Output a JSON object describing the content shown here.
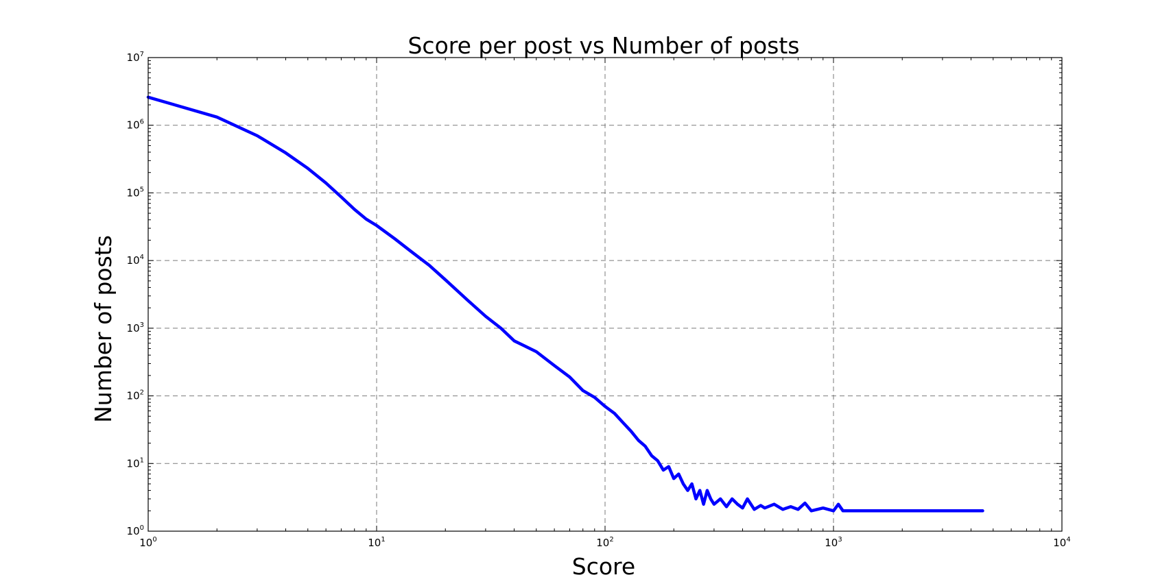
{
  "chart_data": {
    "type": "line",
    "title": "Score per post vs Number of posts",
    "xlabel": "Score",
    "ylabel": "Number of posts",
    "xscale": "log",
    "yscale": "log",
    "xlim": [
      1,
      10000
    ],
    "ylim": [
      1,
      10000000
    ],
    "x_ticks": [
      {
        "value": 1,
        "base": "10",
        "exp": "0"
      },
      {
        "value": 10,
        "base": "10",
        "exp": "1"
      },
      {
        "value": 100,
        "base": "10",
        "exp": "2"
      },
      {
        "value": 1000,
        "base": "10",
        "exp": "3"
      },
      {
        "value": 10000,
        "base": "10",
        "exp": "4"
      }
    ],
    "y_ticks": [
      {
        "value": 1,
        "base": "10",
        "exp": "0"
      },
      {
        "value": 10,
        "base": "10",
        "exp": "1"
      },
      {
        "value": 100,
        "base": "10",
        "exp": "2"
      },
      {
        "value": 1000,
        "base": "10",
        "exp": "3"
      },
      {
        "value": 10000,
        "base": "10",
        "exp": "4"
      },
      {
        "value": 100000,
        "base": "10",
        "exp": "5"
      },
      {
        "value": 1000000,
        "base": "10",
        "exp": "6"
      },
      {
        "value": 10000000,
        "base": "10",
        "exp": "7"
      }
    ],
    "grid": true,
    "legend": "none",
    "series": [
      {
        "color": "#0000ff",
        "x": [
          1,
          2,
          3,
          4,
          5,
          6,
          7,
          8,
          9,
          10,
          12,
          14,
          17,
          20,
          25,
          30,
          35,
          40,
          50,
          60,
          70,
          80,
          90,
          100,
          110,
          120,
          130,
          140,
          150,
          160,
          170,
          180,
          190,
          200,
          210,
          220,
          230,
          240,
          250,
          260,
          270,
          280,
          290,
          300,
          320,
          340,
          360,
          380,
          400,
          420,
          450,
          480,
          500,
          550,
          600,
          650,
          700,
          750,
          800,
          900,
          1000,
          1050,
          1100,
          1200,
          1500,
          2000,
          3000,
          4500
        ],
        "y": [
          2600000,
          1320000,
          700000,
          390000,
          230000,
          140000,
          87000,
          57000,
          41000,
          33000,
          21000,
          14000,
          8500,
          5200,
          2600,
          1500,
          1000,
          650,
          450,
          280,
          190,
          120,
          95,
          70,
          55,
          40,
          30,
          22,
          18,
          13,
          11,
          8,
          9,
          6,
          7,
          5,
          4,
          5,
          3,
          4,
          2.5,
          4,
          3,
          2.5,
          3,
          2.3,
          3,
          2.5,
          2.2,
          3,
          2.1,
          2.4,
          2.2,
          2.5,
          2.1,
          2.3,
          2.1,
          2.6,
          2,
          2.2,
          2,
          2.5,
          2,
          2,
          2,
          2,
          2,
          2
        ]
      }
    ]
  }
}
